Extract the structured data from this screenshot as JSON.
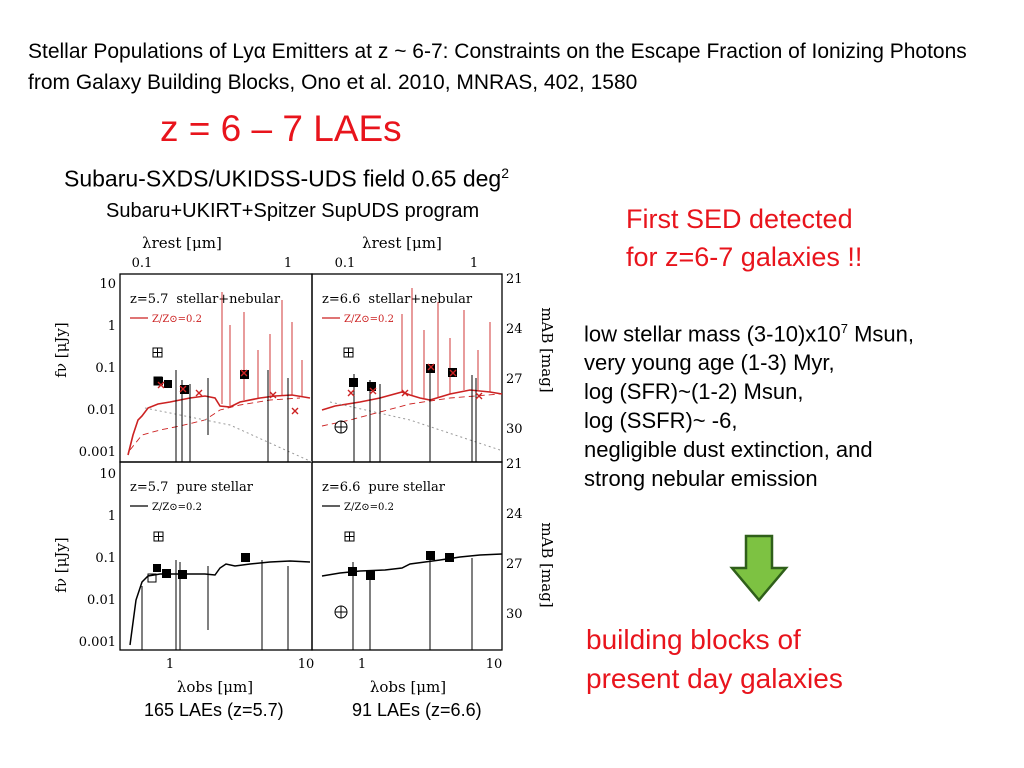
{
  "reference": "Stellar Populations of Lyα Emitters at z ~ 6-7: Constraints on the Escape Fraction of Ionizing Photons from Galaxy Building Blocks, Ono et al. 2010, MNRAS, 402, 1580",
  "main_title": "z = 6 – 7 LAEs",
  "field": {
    "text": "Subaru-SXDS/UKIDSS-UDS field 0.65 deg",
    "sup": "2"
  },
  "program": "Subaru+UKIRT+Spitzer SupUDS program",
  "highlight": {
    "line1": "First SED detected",
    "line2": "for z=6-7 galaxies !!"
  },
  "properties": [
    {
      "text": "low stellar mass (3-10)x10",
      "sup": "7",
      "after": " Msun,"
    },
    {
      "text": "very young age (1-3) Myr,"
    },
    {
      "text": "log (SFR)~(1-2) Msun,"
    },
    {
      "text": "log (SSFR)~ -6,"
    },
    {
      "text": "negligible dust extinction,  and"
    },
    {
      "text": "strong nebular emission"
    }
  ],
  "conclusion": {
    "line1": "building blocks of",
    "line2": "present day galaxies"
  },
  "captions": [
    "165 LAEs (z=5.7)",
    "91 LAEs (z=6.6)"
  ],
  "colors": {
    "red": "#e8141c",
    "arrow_fill": "#7dc242",
    "arrow_stroke": "#2f5f1a",
    "model_red": "#cc2222"
  },
  "figure": {
    "xlabel_top": "λrest [μm]",
    "xlabel_bottom": "λobs [μm]",
    "ylabel_left": "fν [μJy]",
    "ylabel_right": "mAB [mag]",
    "top_ticks": [
      "0.1",
      "1"
    ],
    "bottom_ticks": [
      "1",
      "10"
    ],
    "flux_ticks": [
      "10",
      "1",
      "0.1",
      "0.01",
      "0.001"
    ],
    "mag_ticks_top": [
      "21",
      "24",
      "27",
      "30"
    ],
    "mag_ticks_bottom": [
      "21",
      "24",
      "27",
      "30"
    ],
    "panels": [
      {
        "label": "z=5.7",
        "model": "stellar+nebular",
        "legend": "Z/Z⊙=0.2"
      },
      {
        "label": "z=6.6",
        "model": "stellar+nebular",
        "legend": "Z/Z⊙=0.2"
      },
      {
        "label": "z=5.7",
        "model": "pure stellar",
        "legend": "Z/Z⊙=0.2"
      },
      {
        "label": "z=6.6",
        "model": "pure stellar",
        "legend": "Z/Z⊙=0.2"
      }
    ]
  }
}
